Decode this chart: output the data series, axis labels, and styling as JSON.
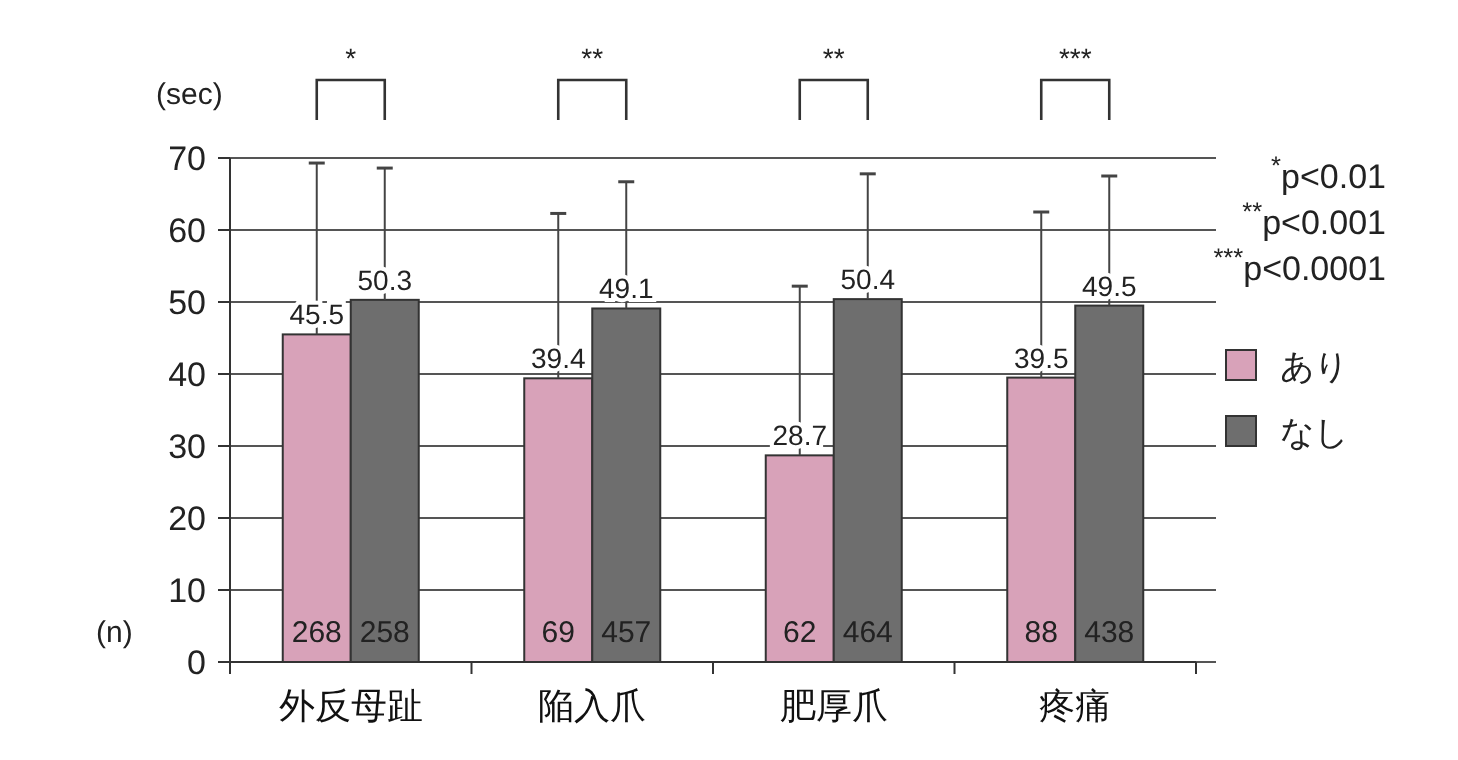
{
  "chart_data": {
    "type": "bar",
    "ylabel": "(sec)",
    "categories": [
      "外反母趾",
      "陥入爪",
      "肥厚爪",
      "疼痛"
    ],
    "series": [
      {
        "name": "あり",
        "color": "#d8a2b9",
        "values": [
          45.5,
          39.4,
          28.7,
          39.5
        ],
        "errors": [
          [
            45.5,
            69.3
          ],
          [
            39.4,
            62.3
          ],
          [
            28.7,
            52.2
          ],
          [
            39.5,
            62.5
          ]
        ]
      },
      {
        "name": "なし",
        "color": "#6e6e6e",
        "values": [
          50.3,
          49.1,
          50.4,
          49.5
        ],
        "errors": [
          [
            50.3,
            68.6
          ],
          [
            49.1,
            66.7
          ],
          [
            50.4,
            67.8
          ],
          [
            49.5,
            67.5
          ]
        ]
      }
    ],
    "ylim": [
      0,
      70
    ],
    "yticks": [
      0,
      10,
      20,
      30,
      40,
      50,
      60,
      70
    ],
    "grid": "y",
    "legend": "right",
    "data_labels": true,
    "annotations": [
      "(n)",
      {
        "text": "268",
        "x": "外反母趾",
        "y": 0
      },
      {
        "text": "258",
        "x": "外反母趾",
        "y": 0
      },
      {
        "text": "69",
        "x": "陥入爪",
        "y": 0
      },
      {
        "text": "457",
        "x": "陥入爪",
        "y": 0
      },
      {
        "text": "62",
        "x": "肥厚爪",
        "y": 0
      },
      {
        "text": "464",
        "x": "肥厚爪",
        "y": 0
      },
      {
        "text": "88",
        "x": "疼痛",
        "y": 0
      },
      {
        "text": "438",
        "x": "疼痛",
        "y": 0
      },
      "*",
      "**",
      "**",
      "***",
      "$^{*}$p<0.01",
      "$^{**}$p<0.001",
      "$^{***}$p<0.0001"
    ]
  }
}
